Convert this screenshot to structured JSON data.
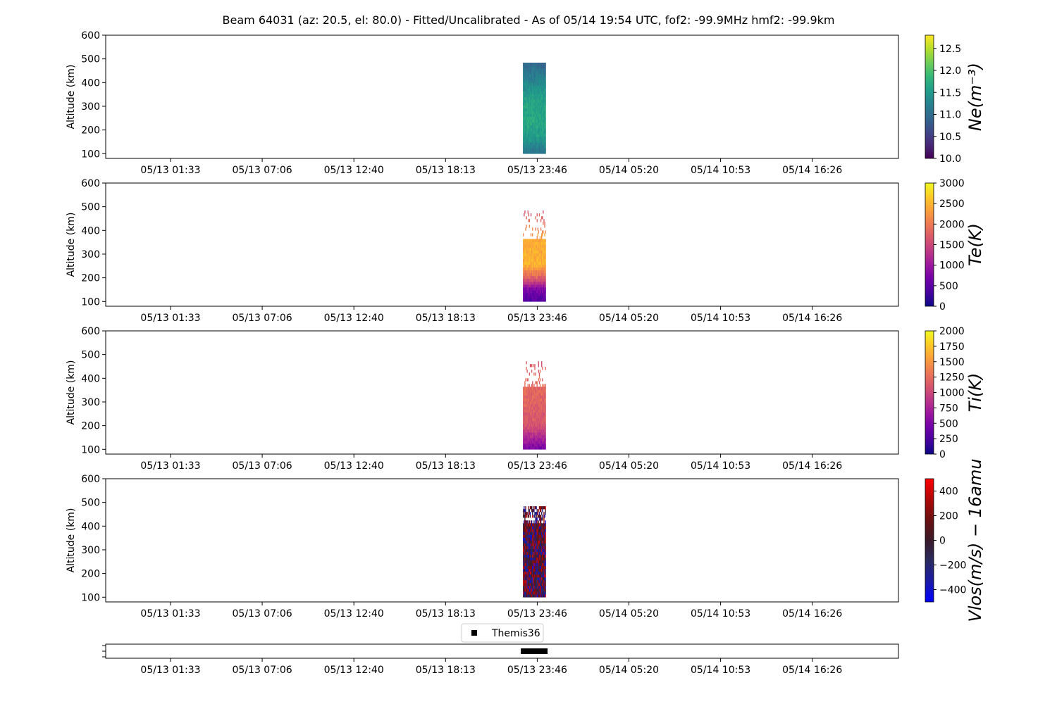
{
  "title": "Beam 64031 (az: 20.5, el: 80.0) - Fitted/Uncalibrated - As of 05/14 19:54 UTC, fof2: -99.9MHz  hmf2: -99.9km",
  "chart_data": [
    {
      "type": "heatmap",
      "title": "",
      "ylabel": "Altitude (km)",
      "colorbar_label": "Ne(m⁻³)",
      "colormap": "viridis",
      "x_tick_labels": [
        "05/13 01:33",
        "05/13 07:06",
        "05/13 12:40",
        "05/13 18:13",
        "05/13 23:46",
        "05/14 05:20",
        "05/14 10:53",
        "05/14 16:26"
      ],
      "y_ticks": [
        100,
        200,
        300,
        400,
        500,
        600
      ],
      "ylim": [
        80,
        600
      ],
      "clim": [
        10.0,
        12.8
      ],
      "colorbar_ticks": [
        "10.0",
        "10.5",
        "11.0",
        "11.5",
        "12.0",
        "12.5"
      ],
      "colorbar_tick_values": [
        10.0,
        10.5,
        11.0,
        11.5,
        12.0,
        12.5
      ],
      "data_time_window": [
        "05/13 22:53",
        "05/14 00:16"
      ],
      "data_altitude_km": [
        100,
        480
      ],
      "value_profile": [
        {
          "alt": 100,
          "value": 11.1
        },
        {
          "alt": 150,
          "value": 11.45
        },
        {
          "alt": 230,
          "value": 11.7
        },
        {
          "alt": 320,
          "value": 11.6
        },
        {
          "alt": 420,
          "value": 11.2
        },
        {
          "alt": 480,
          "value": 10.9
        }
      ]
    },
    {
      "type": "heatmap",
      "title": "",
      "ylabel": "Altitude (km)",
      "colorbar_label": "Te(K)",
      "colormap": "plasma",
      "x_tick_labels": [
        "05/13 01:33",
        "05/13 07:06",
        "05/13 12:40",
        "05/13 18:13",
        "05/13 23:46",
        "05/14 05:20",
        "05/14 10:53",
        "05/14 16:26"
      ],
      "y_ticks": [
        100,
        200,
        300,
        400,
        500,
        600
      ],
      "ylim": [
        80,
        600
      ],
      "clim": [
        0,
        3000
      ],
      "colorbar_ticks": [
        "0",
        "500",
        "1000",
        "1500",
        "2000",
        "2500",
        "3000"
      ],
      "colorbar_tick_values": [
        0,
        500,
        1000,
        1500,
        2000,
        2500,
        3000
      ],
      "data_time_window": [
        "05/13 22:53",
        "05/14 00:16"
      ],
      "data_altitude_km": [
        100,
        480
      ],
      "value_profile": [
        {
          "alt": 100,
          "value": 450
        },
        {
          "alt": 150,
          "value": 800
        },
        {
          "alt": 190,
          "value": 1700
        },
        {
          "alt": 250,
          "value": 2500
        },
        {
          "alt": 350,
          "value": 2400
        },
        {
          "alt": 475,
          "value": 1600
        }
      ]
    },
    {
      "type": "heatmap",
      "title": "",
      "ylabel": "Altitude (km)",
      "colorbar_label": "Ti(K)",
      "colormap": "plasma",
      "x_tick_labels": [
        "05/13 01:33",
        "05/13 07:06",
        "05/13 12:40",
        "05/13 18:13",
        "05/13 23:46",
        "05/14 05:20",
        "05/14 10:53",
        "05/14 16:26"
      ],
      "y_ticks": [
        100,
        200,
        300,
        400,
        500,
        600
      ],
      "ylim": [
        80,
        600
      ],
      "clim": [
        0,
        2000
      ],
      "colorbar_ticks": [
        "0",
        "250",
        "500",
        "750",
        "1000",
        "1250",
        "1500",
        "1750",
        "2000"
      ],
      "colorbar_tick_values": [
        0,
        250,
        500,
        750,
        1000,
        1250,
        1500,
        1750,
        2000
      ],
      "data_time_window": [
        "05/13 22:53",
        "05/14 00:16"
      ],
      "data_altitude_km": [
        100,
        470
      ],
      "value_profile": [
        {
          "alt": 100,
          "value": 500
        },
        {
          "alt": 130,
          "value": 700
        },
        {
          "alt": 200,
          "value": 1100
        },
        {
          "alt": 300,
          "value": 1200
        },
        {
          "alt": 400,
          "value": 1250
        },
        {
          "alt": 470,
          "value": 1100
        }
      ]
    },
    {
      "type": "heatmap",
      "title": "",
      "ylabel": "Altitude (km)",
      "colorbar_label": "Vlos(m/s) − 16amu",
      "colormap": "bwr-dark",
      "x_tick_labels": [
        "05/13 01:33",
        "05/13 07:06",
        "05/13 12:40",
        "05/13 18:13",
        "05/13 23:46",
        "05/14 05:20",
        "05/14 10:53",
        "05/14 16:26"
      ],
      "y_ticks": [
        100,
        200,
        300,
        400,
        500,
        600
      ],
      "ylim": [
        80,
        600
      ],
      "clim": [
        -500,
        500
      ],
      "colorbar_ticks": [
        "−400",
        "−200",
        "0",
        "200",
        "400"
      ],
      "colorbar_tick_values": [
        -400,
        -200,
        0,
        200,
        400
      ],
      "data_time_window": [
        "05/13 22:53",
        "05/14 00:16"
      ],
      "data_altitude_km": [
        100,
        480
      ],
      "value_profile": [
        {
          "alt": 100,
          "value": 0
        },
        {
          "alt": 300,
          "value": 0
        },
        {
          "alt": 480,
          "value": 0
        }
      ]
    },
    {
      "type": "scatter",
      "title": "",
      "legend": [
        "Themis36"
      ],
      "legend_placement": "top-center",
      "marker": "square",
      "x_tick_labels": [
        "05/13 01:33",
        "05/13 07:06",
        "05/13 12:40",
        "05/13 18:13",
        "05/13 23:46",
        "05/14 05:20",
        "05/14 10:53",
        "05/14 16:26"
      ],
      "x_range": [
        "05/13 22:53",
        "05/14 00:16"
      ]
    }
  ]
}
